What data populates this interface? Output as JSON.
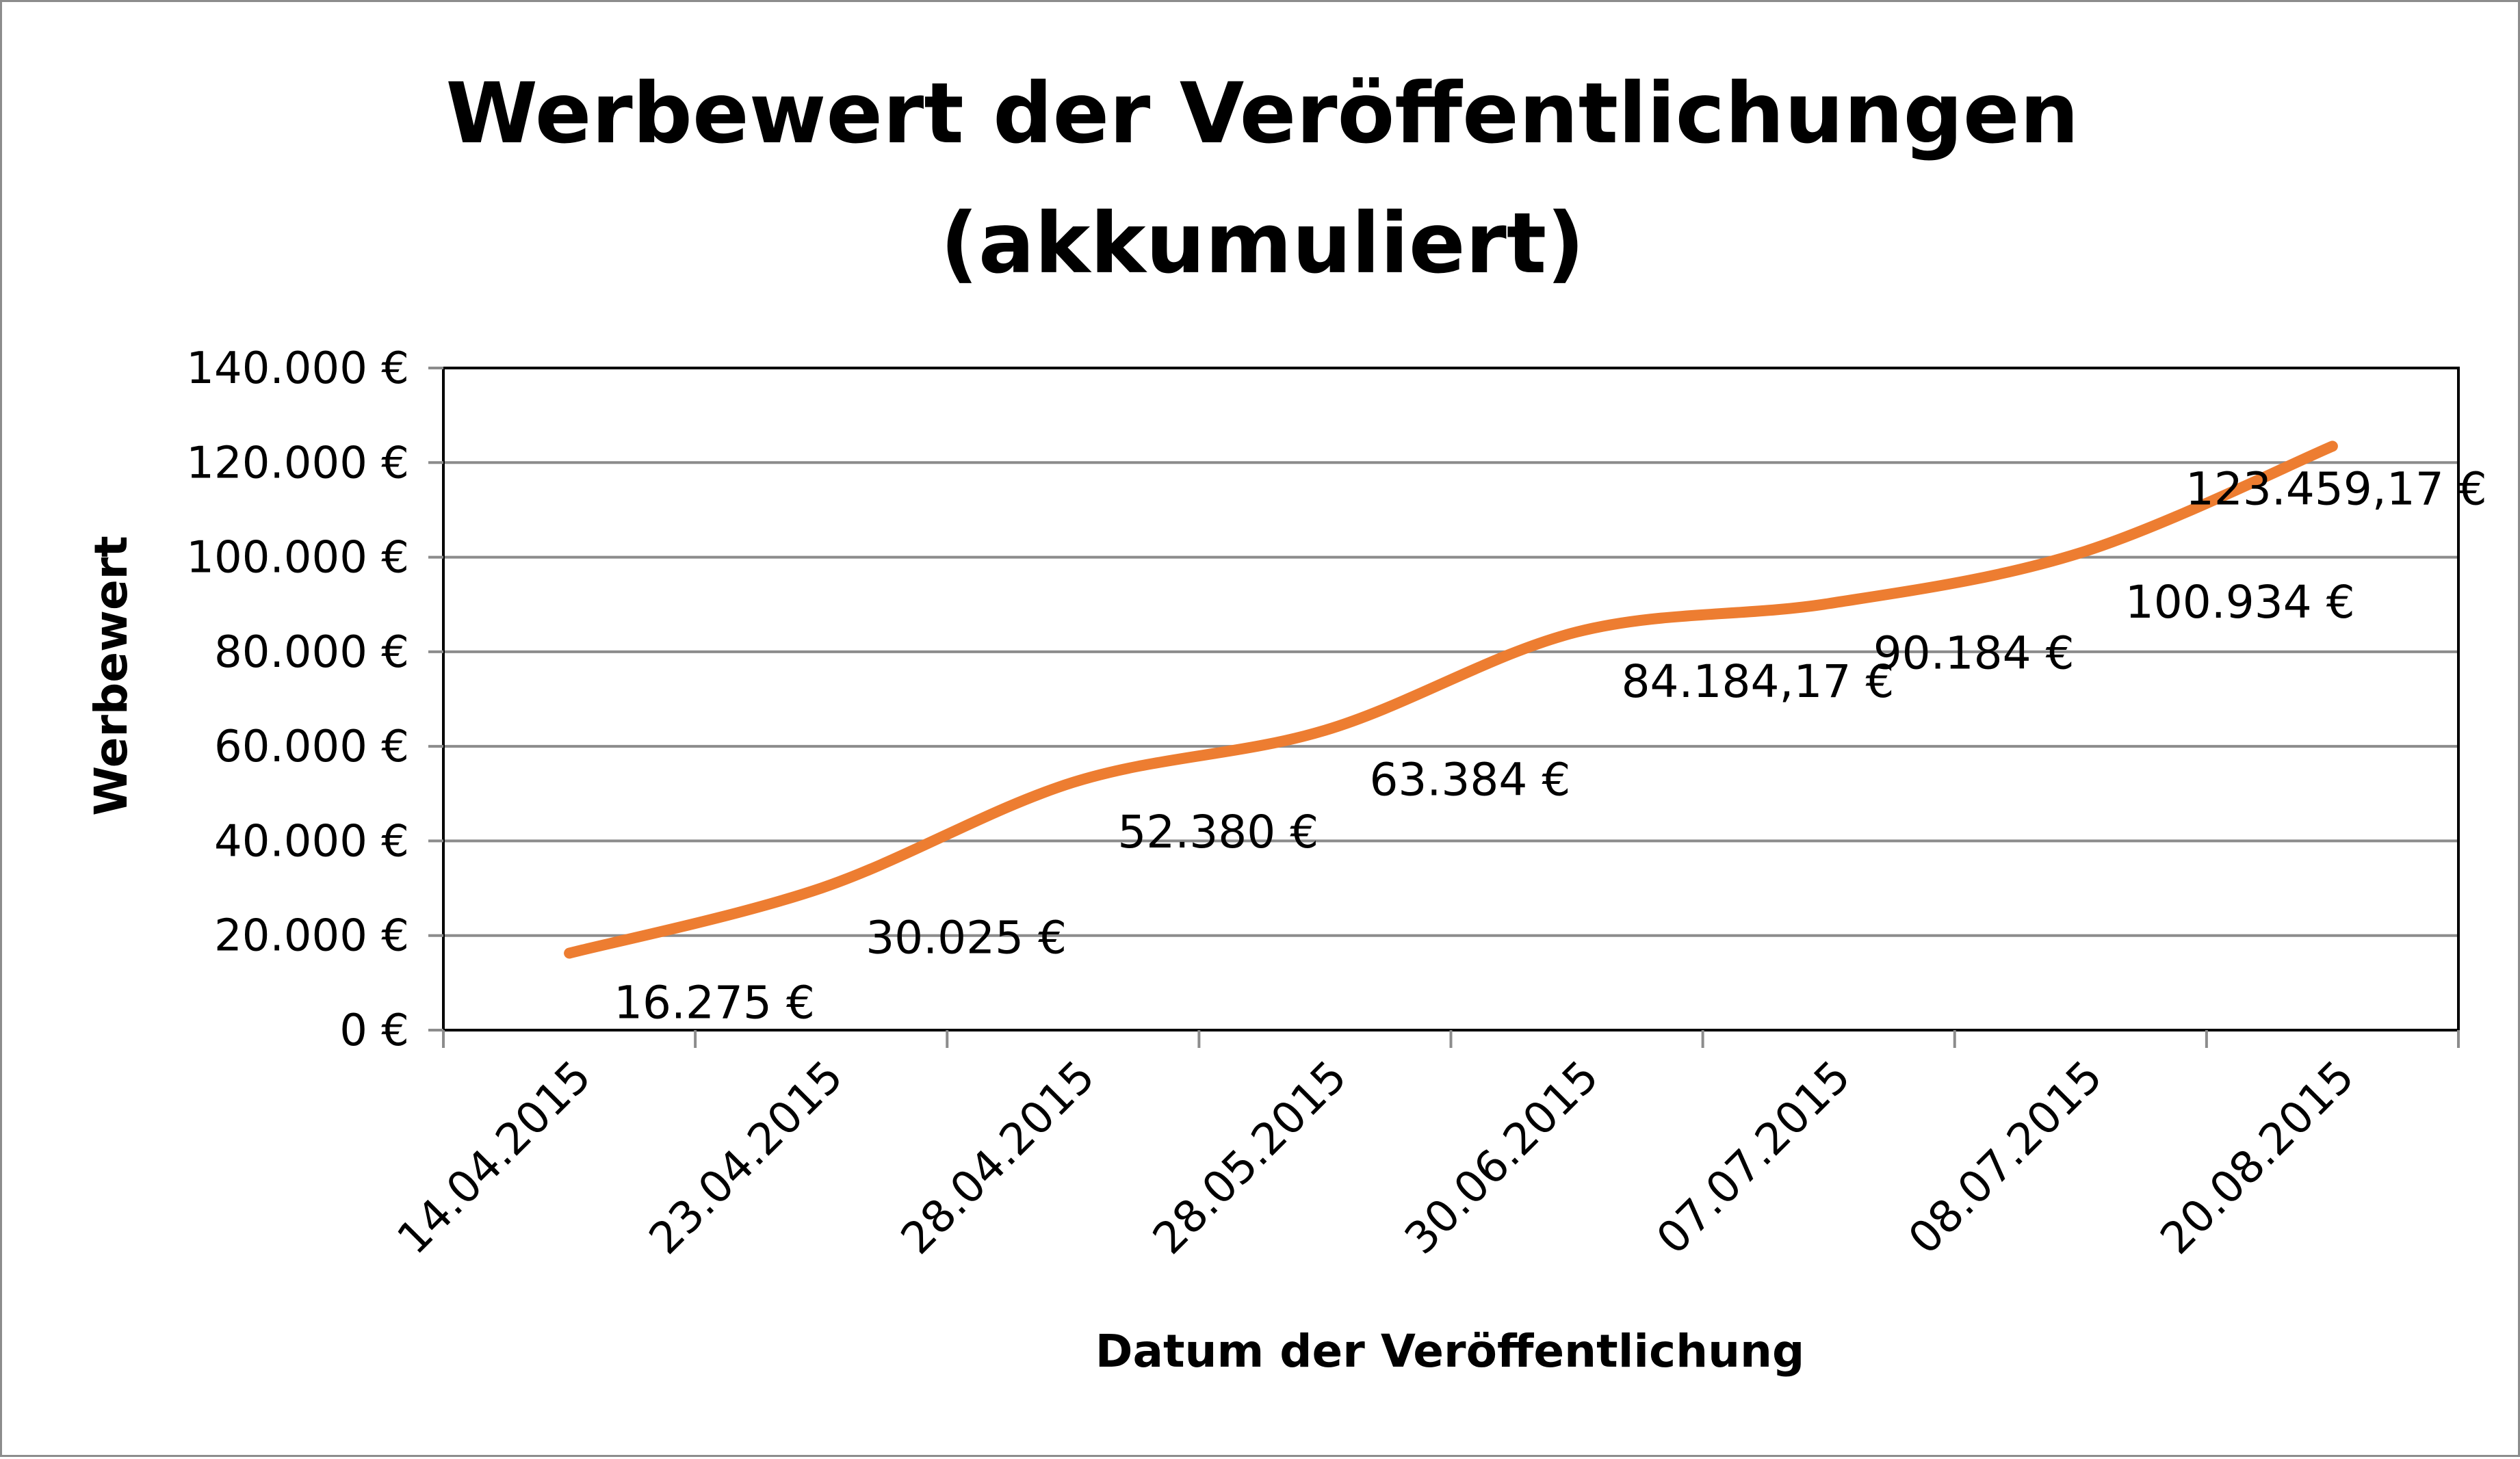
{
  "chart_data": {
    "type": "line",
    "title_lines": [
      "Werbewert der Veröffentlichungen",
      "(akkumuliert)"
    ],
    "xlabel": "Datum der Veröffentlichung",
    "ylabel": "Werbewert",
    "categories": [
      "14.04.2015",
      "23.04.2015",
      "28.04.2015",
      "28.05.2015",
      "30.06.2015",
      "07.07.2015",
      "08.07.2015",
      "20.08.2015"
    ],
    "values": [
      16275,
      30025,
      52380,
      63384,
      84184.17,
      90184,
      100934,
      123459.17
    ],
    "data_labels": [
      "16.275 €",
      "30.025 €",
      "52.380 €",
      "63.384 €",
      "84.184,17 €",
      "90.184 €",
      "100.934 €",
      "123.459,17 €"
    ],
    "ylim": [
      0,
      140000
    ],
    "yticks": [
      0,
      20000,
      40000,
      60000,
      80000,
      100000,
      120000,
      140000
    ],
    "ytick_labels": [
      "0 €",
      "20.000 €",
      "40.000 €",
      "60.000 €",
      "80.000 €",
      "100.000 €",
      "120.000 €",
      "140.000 €"
    ],
    "grid": true,
    "line_color": "#ed7d31",
    "grid_color": "#8c8c8c",
    "smooth": true
  }
}
